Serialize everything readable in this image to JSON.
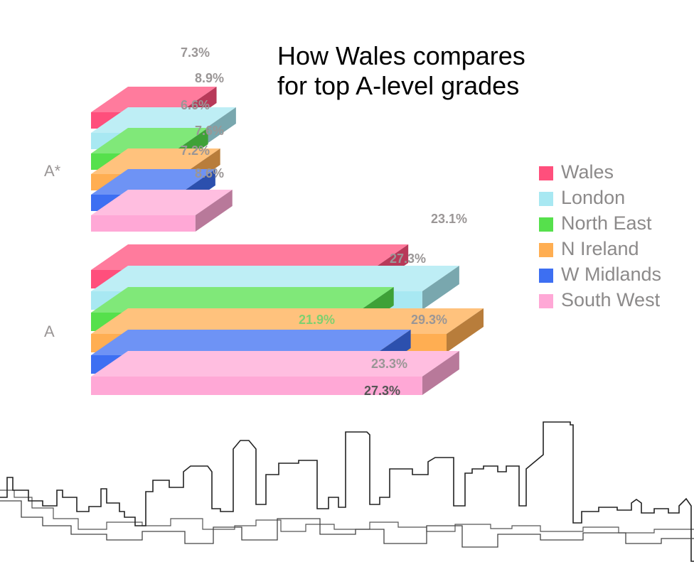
{
  "title_lines": [
    "How Wales compares",
    "for top A-level grades"
  ],
  "legend": [
    {
      "label": "Wales",
      "color": "#ff4f7c"
    },
    {
      "label": "London",
      "color": "#a8e8f2"
    },
    {
      "label": "North East",
      "color": "#56e04c"
    },
    {
      "label": "N Ireland",
      "color": "#ffae52"
    },
    {
      "label": "W Midlands",
      "color": "#3d6ff2"
    },
    {
      "label": "South West",
      "color": "#ffa8d6"
    }
  ],
  "chart_data": {
    "type": "bar",
    "orientation": "horizontal",
    "style": "3d",
    "categories": [
      "A*",
      "A"
    ],
    "series": [
      {
        "name": "Wales",
        "values": [
          7.3,
          23.1
        ],
        "labels": [
          "7.3%",
          "23.1%"
        ],
        "color": "#ff4f7c"
      },
      {
        "name": "London",
        "values": [
          8.9,
          27.3
        ],
        "labels": [
          "8.9%",
          "27.3%"
        ],
        "color": "#a8e8f2"
      },
      {
        "name": "North East",
        "values": [
          6.6,
          21.9
        ],
        "labels": [
          "6.6%",
          "21.9%"
        ],
        "color": "#56e04c"
      },
      {
        "name": "N Ireland",
        "values": [
          7.6,
          29.3
        ],
        "labels": [
          "7.6%",
          "29.3%"
        ],
        "color": "#ffae52"
      },
      {
        "name": "W Midlands",
        "values": [
          7.2,
          23.3
        ],
        "labels": [
          "7.2%",
          "23.3%"
        ],
        "color": "#3d6ff2"
      },
      {
        "name": "South West",
        "values": [
          8.6,
          27.3
        ],
        "labels": [
          "8.6%",
          "27.3%"
        ],
        "color": "#ffa8d6"
      }
    ],
    "legend_position": "right",
    "grid": false
  }
}
